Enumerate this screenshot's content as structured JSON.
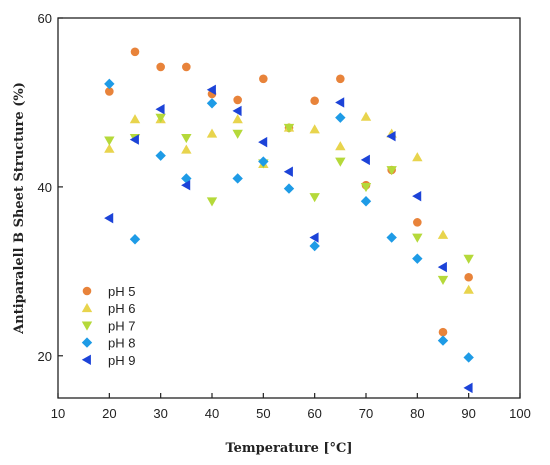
{
  "chart_data": {
    "type": "scatter",
    "xlabel": "Temperature [°C]",
    "ylabel": "Antiparalell B Sheet Structure (%)",
    "xlim": [
      10,
      100
    ],
    "ylim": [
      15,
      60
    ],
    "xticks": [
      10,
      20,
      30,
      40,
      50,
      60,
      70,
      80,
      90,
      100
    ],
    "yticks": [
      20,
      40,
      60
    ],
    "grid": false,
    "legend_position": "bottom-left",
    "series": [
      {
        "name": "pH 5",
        "marker": "circle",
        "color": "#E8833A",
        "points": [
          [
            20,
            51.3
          ],
          [
            25,
            56.0
          ],
          [
            30,
            54.2
          ],
          [
            35,
            54.2
          ],
          [
            40,
            51.0
          ],
          [
            45,
            50.3
          ],
          [
            50,
            52.8
          ],
          [
            55,
            47.0
          ],
          [
            60,
            50.2
          ],
          [
            65,
            52.8
          ],
          [
            70,
            40.2
          ],
          [
            75,
            42.0
          ],
          [
            80,
            35.8
          ],
          [
            85,
            22.8
          ],
          [
            90,
            29.3
          ]
        ]
      },
      {
        "name": "pH 6",
        "marker": "triangle-up",
        "color": "#E8D44D",
        "points": [
          [
            20,
            44.5
          ],
          [
            25,
            48.0
          ],
          [
            30,
            48.0
          ],
          [
            35,
            44.4
          ],
          [
            40,
            46.3
          ],
          [
            45,
            48.0
          ],
          [
            50,
            42.7
          ],
          [
            55,
            47.0
          ],
          [
            60,
            46.8
          ],
          [
            65,
            44.8
          ],
          [
            70,
            48.3
          ],
          [
            75,
            46.3
          ],
          [
            80,
            43.5
          ],
          [
            85,
            34.3
          ],
          [
            90,
            27.8
          ]
        ]
      },
      {
        "name": "pH 7",
        "marker": "triangle-down",
        "color": "#B5D93A",
        "points": [
          [
            20,
            45.5
          ],
          [
            25,
            45.8
          ],
          [
            30,
            48.2
          ],
          [
            35,
            45.8
          ],
          [
            40,
            38.3
          ],
          [
            45,
            46.3
          ],
          [
            50,
            42.8
          ],
          [
            55,
            47.0
          ],
          [
            60,
            38.8
          ],
          [
            65,
            43.0
          ],
          [
            70,
            40.0
          ],
          [
            75,
            42.0
          ],
          [
            80,
            34.0
          ],
          [
            85,
            29.0
          ],
          [
            90,
            31.5
          ]
        ]
      },
      {
        "name": "pH 8",
        "marker": "diamond",
        "color": "#1E9BE6",
        "points": [
          [
            20,
            52.2
          ],
          [
            25,
            33.8
          ],
          [
            30,
            43.7
          ],
          [
            35,
            41.0
          ],
          [
            40,
            49.9
          ],
          [
            45,
            41.0
          ],
          [
            50,
            43.0
          ],
          [
            55,
            39.8
          ],
          [
            60,
            33.0
          ],
          [
            65,
            48.2
          ],
          [
            70,
            38.3
          ],
          [
            75,
            34.0
          ],
          [
            80,
            31.5
          ],
          [
            85,
            21.8
          ],
          [
            90,
            19.8
          ]
        ]
      },
      {
        "name": "pH 9",
        "marker": "triangle-left",
        "color": "#1C43D8",
        "points": [
          [
            20,
            36.3
          ],
          [
            25,
            45.6
          ],
          [
            30,
            49.2
          ],
          [
            35,
            40.2
          ],
          [
            40,
            51.5
          ],
          [
            45,
            49.0
          ],
          [
            50,
            45.3
          ],
          [
            55,
            41.8
          ],
          [
            60,
            34.0
          ],
          [
            65,
            50.0
          ],
          [
            70,
            43.2
          ],
          [
            75,
            46.0
          ],
          [
            80,
            38.9
          ],
          [
            85,
            30.5
          ],
          [
            90,
            16.2
          ]
        ]
      }
    ]
  }
}
